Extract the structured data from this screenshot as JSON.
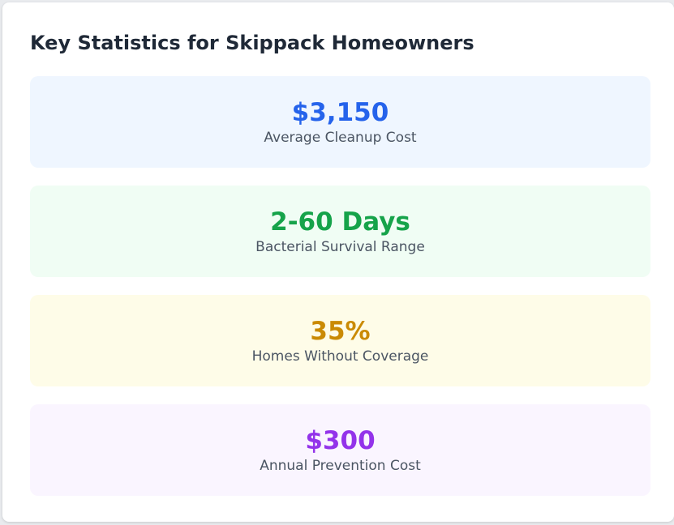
{
  "header": {
    "title": "Key Statistics for Skippack Homeowners"
  },
  "stats": [
    {
      "value": "$3,150",
      "label": "Average Cleanup Cost",
      "value_color": "#2563eb",
      "bg_color": "#eff6ff"
    },
    {
      "value": "2-60 Days",
      "label": "Bacterial Survival Range",
      "value_color": "#16a34a",
      "bg_color": "#f0fdf4"
    },
    {
      "value": "35%",
      "label": "Homes Without Coverage",
      "value_color": "#ca8a04",
      "bg_color": "#fefce8"
    },
    {
      "value": "$300",
      "label": "Annual Prevention Cost",
      "value_color": "#9333ea",
      "bg_color": "#faf5ff"
    }
  ]
}
